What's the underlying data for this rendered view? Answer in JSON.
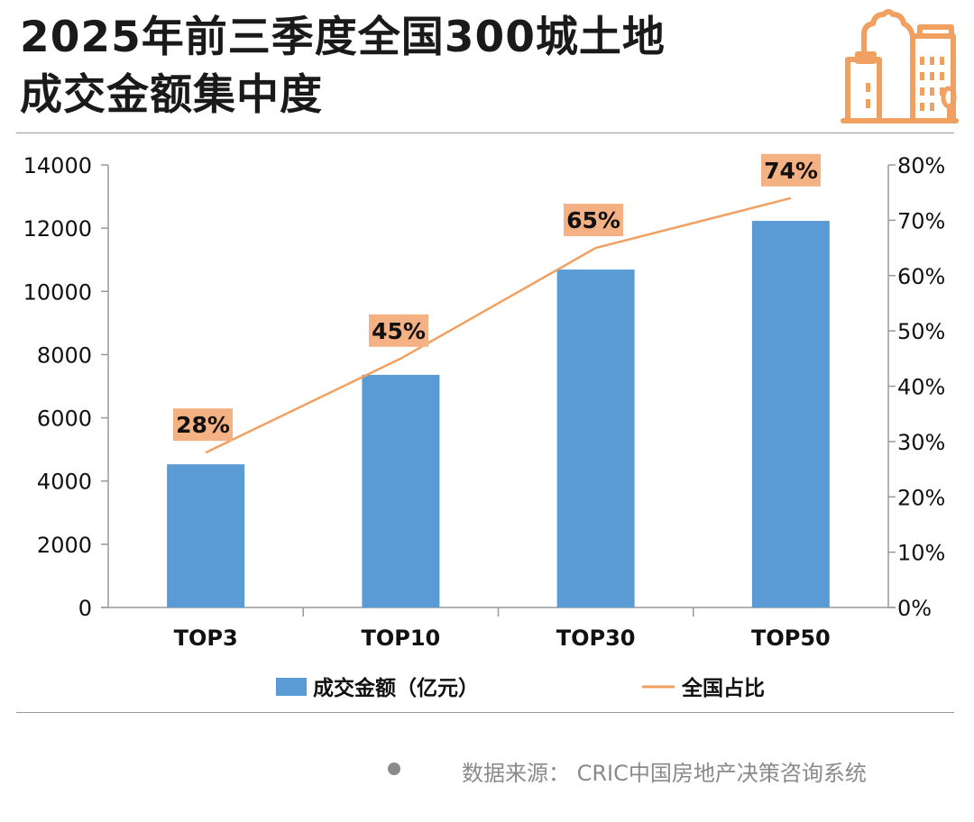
{
  "header": {
    "title_line1": "2025年前三季度全国300城土地",
    "title_line2": "成交金额集中度",
    "icon": "city-buildings-icon",
    "icon_color": "#F0A060"
  },
  "footer": {
    "source": "数据来源：  CRIC中国房地产决策咨询系统"
  },
  "chart_data": {
    "type": "bar+line",
    "categories": [
      "TOP3",
      "TOP10",
      "TOP30",
      "TOP50"
    ],
    "series": [
      {
        "name": "成交金额（亿元）",
        "type": "bar",
        "axis": "left",
        "color": "#5B9BD5",
        "values": [
          4530,
          7360,
          10690,
          12230
        ]
      },
      {
        "name": "全国占比",
        "type": "line",
        "axis": "right",
        "color": "#F0A060",
        "values": [
          28,
          45,
          65,
          74
        ],
        "labels": [
          "28%",
          "45%",
          "65%",
          "74%"
        ]
      }
    ],
    "y_left": {
      "lim": [
        0,
        14000
      ],
      "ticks": [
        "0",
        "2000",
        "4000",
        "6000",
        "8000",
        "10000",
        "12000",
        "14000"
      ]
    },
    "y_right": {
      "lim": [
        0,
        80
      ],
      "ticks": [
        "0%",
        "10%",
        "20%",
        "30%",
        "40%",
        "50%",
        "60%",
        "70%",
        "80%"
      ]
    },
    "legend": "bottom",
    "grid": false,
    "label_box_color": "#F4B183"
  }
}
